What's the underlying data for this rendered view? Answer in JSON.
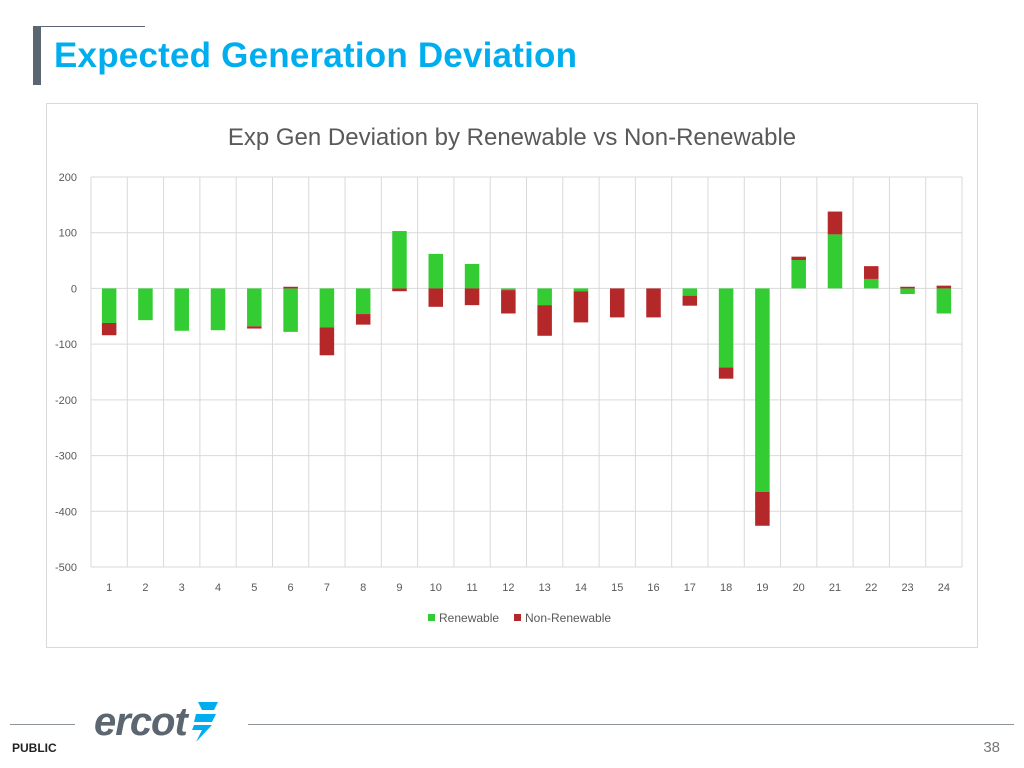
{
  "slide": {
    "title": "Expected Generation Deviation",
    "classification": "PUBLIC",
    "page_number": "38",
    "logo_text": "ercot"
  },
  "colors": {
    "title": "#00aeef",
    "renewable": "#33cc33",
    "non_renewable": "#b5282a",
    "gridline": "#d9d9d9",
    "accent": "#5b6670"
  },
  "chart_data": {
    "type": "bar",
    "stacked": true,
    "title": "Exp Gen Deviation by Renewable vs Non-Renewable",
    "xlabel": "",
    "ylabel": "",
    "ylim": [
      -500,
      200
    ],
    "yticks": [
      200,
      100,
      0,
      -100,
      -200,
      -300,
      -400,
      -500
    ],
    "grid": true,
    "legend_position": "bottom",
    "categories": [
      "1",
      "2",
      "3",
      "4",
      "5",
      "6",
      "7",
      "8",
      "9",
      "10",
      "11",
      "12",
      "13",
      "14",
      "15",
      "16",
      "17",
      "18",
      "19",
      "20",
      "21",
      "22",
      "23",
      "24"
    ],
    "series": [
      {
        "name": "Renewable",
        "color": "#33cc33",
        "values": [
          -62,
          -57,
          -76,
          -75,
          -68,
          -78,
          -70,
          -46,
          103,
          62,
          44,
          -3,
          -30,
          -5,
          0,
          0,
          -13,
          -142,
          -365,
          51,
          97,
          17,
          -10,
          -45
        ]
      },
      {
        "name": "Non-Renewable",
        "color": "#b5282a",
        "values": [
          -22,
          0,
          0,
          0,
          -4,
          3,
          -50,
          -19,
          -5,
          -33,
          -30,
          -42,
          -55,
          -56,
          -52,
          -52,
          -18,
          -20,
          -61,
          6,
          41,
          23,
          3,
          5
        ]
      }
    ]
  }
}
